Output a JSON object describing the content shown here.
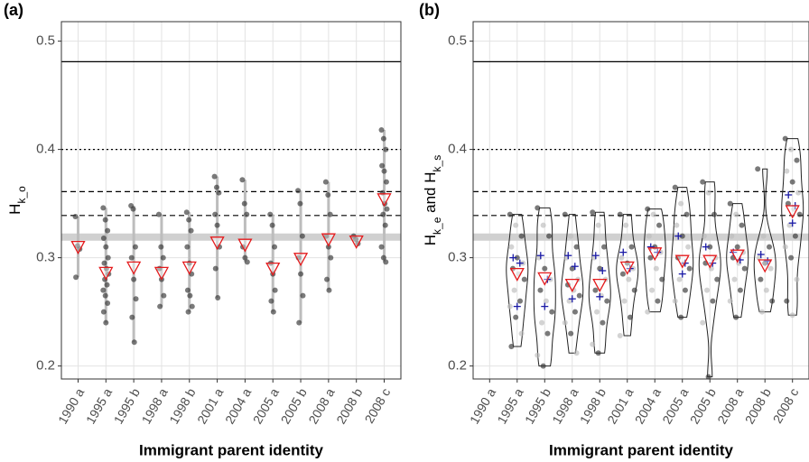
{
  "chart_data": [
    {
      "type": "strip",
      "tag": "(a)",
      "x_label": "Immigrant parent identity",
      "y_label": [
        {
          "text": "H",
          "sub": false
        },
        {
          "text": "k_o",
          "sub": true
        }
      ],
      "categories": [
        "1990 a",
        "1995 a",
        "1995 b",
        "1998 a",
        "1998 b",
        "2001 a",
        "2004 a",
        "2005 a",
        "2005 b",
        "2008 a",
        "2008 b",
        "2008 c"
      ],
      "points": [
        [
          0.338,
          0.311,
          0.308,
          0.282
        ],
        [
          0.346,
          0.335,
          0.325,
          0.318,
          0.31,
          0.3,
          0.295,
          0.29,
          0.285,
          0.28,
          0.275,
          0.27,
          0.265,
          0.258,
          0.25,
          0.24
        ],
        [
          0.348,
          0.345,
          0.31,
          0.3,
          0.28,
          0.262,
          0.245,
          0.222
        ],
        [
          0.34,
          0.31,
          0.3,
          0.29,
          0.28,
          0.265,
          0.255
        ],
        [
          0.342,
          0.335,
          0.325,
          0.31,
          0.295,
          0.285,
          0.27,
          0.265,
          0.255,
          0.25
        ],
        [
          0.375,
          0.365,
          0.36,
          0.34,
          0.33,
          0.31,
          0.29,
          0.263
        ],
        [
          0.372,
          0.35,
          0.34,
          0.31,
          0.3,
          0.296
        ],
        [
          0.34,
          0.33,
          0.31,
          0.295,
          0.285,
          0.27,
          0.26,
          0.25
        ],
        [
          0.362,
          0.35,
          0.32,
          0.3,
          0.285,
          0.265,
          0.24
        ],
        [
          0.37,
          0.358,
          0.34,
          0.32,
          0.31,
          0.3,
          0.28,
          0.27
        ],
        [
          0.32,
          0.317,
          0.313
        ],
        [
          0.418,
          0.41,
          0.4,
          0.385,
          0.38,
          0.37,
          0.36,
          0.35,
          0.345,
          0.34,
          0.33,
          0.31,
          0.3,
          0.296
        ]
      ],
      "point_colors": [
        "#333333"
      ],
      "means": [
        0.31,
        0.286,
        0.291,
        0.286,
        0.291,
        0.314,
        0.312,
        0.29,
        0.299,
        0.317,
        0.315,
        0.354
      ],
      "mean_color": "#e41a1c",
      "range_line": true,
      "violin": false,
      "ylim": [
        0.188,
        0.518
      ],
      "yticks": [
        0.2,
        0.3,
        0.4,
        0.5
      ],
      "grid": true,
      "reference_lines": [
        {
          "value": 0.481,
          "style": "solid"
        },
        {
          "value": 0.4,
          "style": "dotted"
        },
        {
          "value": 0.361,
          "style": "dashed"
        },
        {
          "value": 0.339,
          "style": "dashed"
        }
      ],
      "band": {
        "value": 0.319,
        "color": "#d0d0d0"
      }
    },
    {
      "type": "violin",
      "tag": "(b)",
      "x_label": "Immigrant parent identity",
      "y_label": [
        {
          "text": "H",
          "sub": false
        },
        {
          "text": "k_e",
          "sub": true
        },
        {
          "text": " and H",
          "sub": false
        },
        {
          "text": "k_s",
          "sub": true
        }
      ],
      "categories": [
        "1990 a",
        "1995 a",
        "1995 b",
        "1998 a",
        "1998 b",
        "2001 a",
        "2004 a",
        "2005 a",
        "2005 b",
        "2008 a",
        "2008 b",
        "2008 c"
      ],
      "points": [
        [],
        [
          0.34,
          0.33,
          0.32,
          0.31,
          0.3,
          0.295,
          0.29,
          0.285,
          0.28,
          0.27,
          0.26,
          0.255,
          0.245,
          0.23,
          0.218
        ],
        [
          0.346,
          0.33,
          0.32,
          0.3,
          0.29,
          0.28,
          0.27,
          0.26,
          0.25,
          0.24,
          0.23,
          0.21,
          0.2
        ],
        [
          0.34,
          0.32,
          0.31,
          0.3,
          0.29,
          0.28,
          0.275,
          0.27,
          0.265,
          0.26,
          0.25,
          0.24,
          0.23,
          0.212
        ],
        [
          0.342,
          0.33,
          0.31,
          0.3,
          0.29,
          0.28,
          0.27,
          0.265,
          0.26,
          0.25,
          0.24,
          0.22,
          0.212
        ],
        [
          0.34,
          0.33,
          0.31,
          0.3,
          0.295,
          0.29,
          0.285,
          0.28,
          0.27,
          0.26,
          0.245,
          0.228
        ],
        [
          0.345,
          0.34,
          0.33,
          0.32,
          0.31,
          0.305,
          0.3,
          0.29,
          0.28,
          0.27,
          0.26,
          0.25
        ],
        [
          0.365,
          0.35,
          0.34,
          0.33,
          0.32,
          0.31,
          0.3,
          0.295,
          0.29,
          0.28,
          0.27,
          0.26,
          0.245
        ],
        [
          0.37,
          0.36,
          0.34,
          0.32,
          0.31,
          0.3,
          0.295,
          0.29,
          0.28,
          0.27,
          0.26,
          0.24,
          0.19
        ],
        [
          0.35,
          0.34,
          0.33,
          0.32,
          0.31,
          0.305,
          0.3,
          0.295,
          0.29,
          0.28,
          0.27,
          0.26,
          0.245
        ],
        [
          0.382,
          0.32,
          0.31,
          0.3,
          0.295,
          0.29,
          0.28,
          0.27,
          0.26,
          0.25
        ],
        [
          0.41,
          0.4,
          0.39,
          0.38,
          0.37,
          0.36,
          0.35,
          0.345,
          0.34,
          0.33,
          0.32,
          0.31,
          0.3,
          0.28,
          0.26,
          0.247
        ]
      ],
      "point_colors": [
        "#333333",
        "#bbbbbb"
      ],
      "crosses": [
        [],
        [
          0.3,
          0.295,
          0.255
        ],
        [
          0.302,
          0.28,
          0.255
        ],
        [
          0.302,
          0.292,
          0.262
        ],
        [
          0.302,
          0.288,
          0.264
        ],
        [
          0.305,
          0.29
        ],
        [
          0.31,
          0.305
        ],
        [
          0.32,
          0.295,
          0.285
        ],
        [
          0.31,
          0.295
        ],
        [
          0.305,
          0.298
        ],
        [
          0.303,
          0.297
        ],
        [
          0.358,
          0.348,
          0.332
        ]
      ],
      "cross_color": "#1a1aa6",
      "means": [
        null,
        0.285,
        0.281,
        0.275,
        0.275,
        0.291,
        0.304,
        0.297,
        0.297,
        0.302,
        0.293,
        0.343
      ],
      "mean_color": "#e41a1c",
      "range_line": false,
      "violin": true,
      "ylim": [
        0.188,
        0.518
      ],
      "yticks": [
        0.2,
        0.3,
        0.4,
        0.5
      ],
      "grid": true,
      "reference_lines": [
        {
          "value": 0.481,
          "style": "solid"
        },
        {
          "value": 0.4,
          "style": "dotted"
        },
        {
          "value": 0.361,
          "style": "dashed"
        },
        {
          "value": 0.339,
          "style": "dashed"
        }
      ],
      "band": {
        "value": 0.319,
        "color": "#d0d0d0"
      }
    }
  ]
}
